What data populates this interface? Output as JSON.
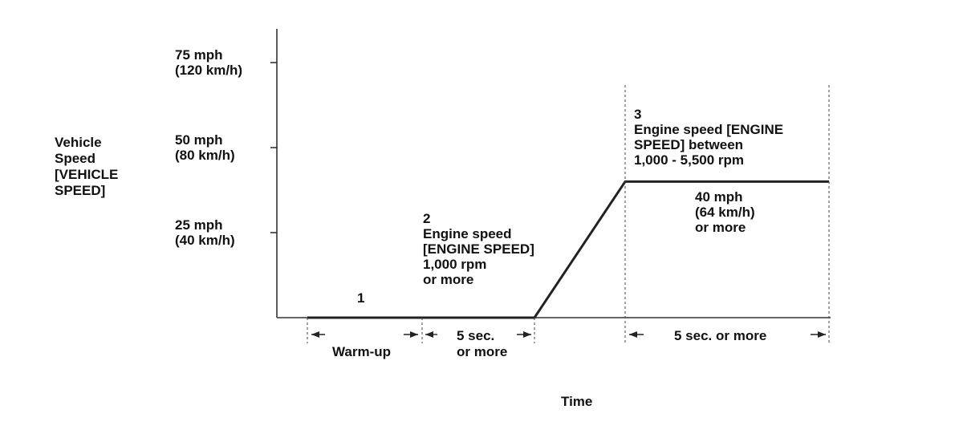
{
  "chart_data": {
    "type": "line",
    "title": "",
    "ylabel_lines": [
      "Vehicle",
      "Speed",
      "[VEHICLE",
      "SPEED]"
    ],
    "xlabel": "Time",
    "yticks": [
      {
        "value": 75,
        "lines": [
          "75 mph",
          "(120 km/h)"
        ]
      },
      {
        "value": 50,
        "lines": [
          "50 mph",
          "(80 km/h)"
        ]
      },
      {
        "value": 25,
        "lines": [
          "25 mph",
          "(40 km/h)"
        ]
      }
    ],
    "ylim": [
      0,
      85
    ],
    "units": "mph",
    "series": [
      {
        "name": "Vehicle speed",
        "points": [
          {
            "phase": "start",
            "speed": 0
          },
          {
            "phase": "end of step 2",
            "speed": 0
          },
          {
            "phase": "start of step 3",
            "speed": 40
          },
          {
            "phase": "end",
            "speed": 40
          }
        ]
      }
    ],
    "annotations": {
      "step1": "1",
      "step2": [
        "2",
        "Engine speed",
        "[ENGINE SPEED]",
        "1,000 rpm",
        "or more"
      ],
      "step3": [
        "3",
        "Engine speed [ENGINE",
        "SPEED] between",
        "1,000 - 5,500 rpm"
      ],
      "step3_speed": [
        "40 mph",
        "(64 km/h)",
        "or more"
      ]
    },
    "intervals": {
      "warmup": [
        "Warm-up"
      ],
      "five_sec": [
        "5 sec.",
        "or more"
      ],
      "five_sec_final": [
        "5 sec. or more"
      ]
    }
  }
}
